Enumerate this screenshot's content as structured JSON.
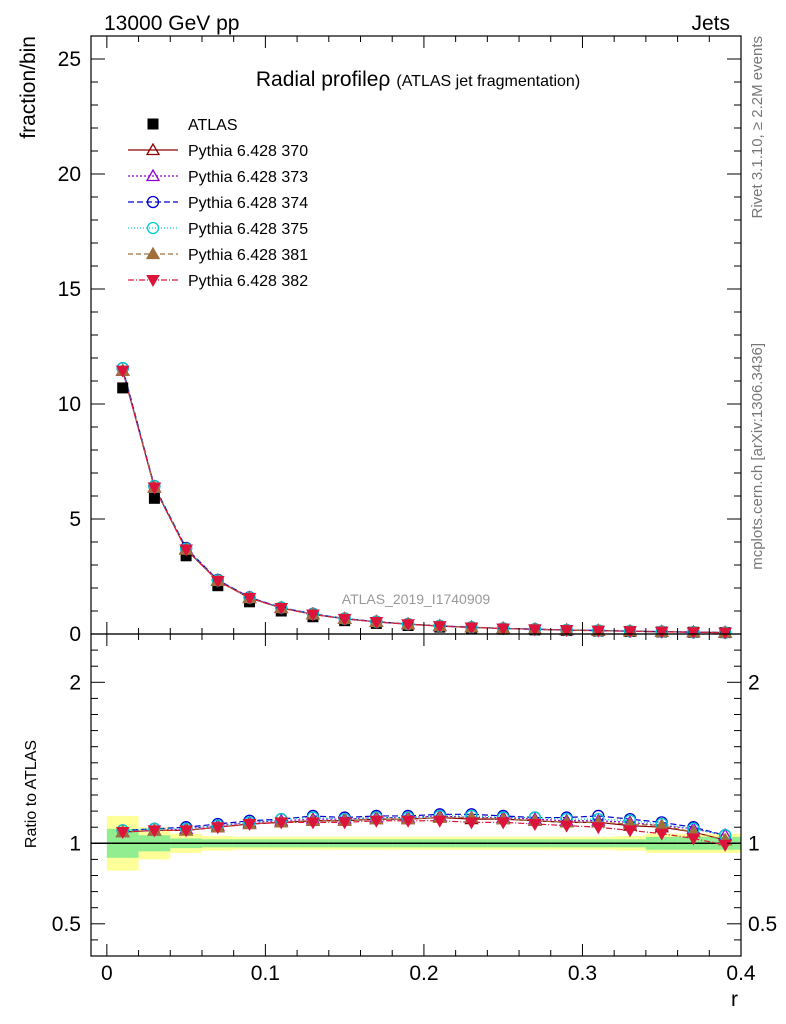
{
  "header": {
    "left": "13000 GeV pp",
    "right": "Jets"
  },
  "side_labels": {
    "rivet": "Rivet 3.1.10, ≥ 2.2M events",
    "mcplots": "mcplots.cern.ch [arXiv:1306.3436]"
  },
  "watermark": "ATLAS_2019_I1740909",
  "chart_data": {
    "type": "line",
    "title": "Radial profileρ",
    "subtitle": "(ATLAS jet fragmentation)",
    "xlabel": "r",
    "ylabel": "fraction/bin",
    "ratio_ylabel": "Ratio to ATLAS",
    "xlim": [
      -0.01,
      0.4
    ],
    "ylim": [
      0,
      26
    ],
    "ratio_ylim": [
      0.3,
      2.3
    ],
    "x_ticks": [
      "0",
      "0.1",
      "0.2",
      "0.3",
      "0.4"
    ],
    "y_ticks": [
      "0",
      "5",
      "10",
      "15",
      "20",
      "25"
    ],
    "ratio_y_ticks": [
      "0.5",
      "1",
      "2"
    ],
    "x": [
      0.01,
      0.03,
      0.05,
      0.07,
      0.09,
      0.11,
      0.13,
      0.15,
      0.17,
      0.19,
      0.21,
      0.23,
      0.25,
      0.27,
      0.29,
      0.31,
      0.33,
      0.35,
      0.37,
      0.39
    ],
    "data": {
      "name": "ATLAS",
      "values": [
        10.7,
        5.9,
        3.4,
        2.1,
        1.4,
        1.0,
        0.75,
        0.58,
        0.46,
        0.37,
        0.3,
        0.25,
        0.21,
        0.18,
        0.15,
        0.13,
        0.11,
        0.09,
        0.075,
        0.06
      ]
    },
    "bands": {
      "green": [
        0.09,
        0.05,
        0.03,
        0.025,
        0.025,
        0.025,
        0.025,
        0.025,
        0.025,
        0.025,
        0.025,
        0.025,
        0.025,
        0.025,
        0.025,
        0.025,
        0.025,
        0.04,
        0.04,
        0.04
      ],
      "yellow": [
        0.17,
        0.1,
        0.06,
        0.045,
        0.04,
        0.04,
        0.04,
        0.04,
        0.04,
        0.04,
        0.04,
        0.04,
        0.04,
        0.04,
        0.04,
        0.04,
        0.045,
        0.06,
        0.06,
        0.06
      ]
    },
    "series": [
      {
        "name": "Pythia 6.428 370",
        "color": "#8b0000",
        "dash": "",
        "marker": "triangle-open",
        "ratio": [
          1.07,
          1.08,
          1.08,
          1.1,
          1.12,
          1.13,
          1.14,
          1.14,
          1.15,
          1.15,
          1.16,
          1.15,
          1.15,
          1.14,
          1.13,
          1.13,
          1.11,
          1.1,
          1.07,
          1.02
        ]
      },
      {
        "name": "Pythia 6.428 373",
        "color": "#9400d3",
        "dash": "2,2",
        "marker": "triangle-open",
        "ratio": [
          1.07,
          1.08,
          1.09,
          1.11,
          1.13,
          1.14,
          1.15,
          1.15,
          1.16,
          1.16,
          1.17,
          1.16,
          1.16,
          1.15,
          1.14,
          1.14,
          1.13,
          1.11,
          1.09,
          1.05
        ]
      },
      {
        "name": "Pythia 6.428 374",
        "color": "#0000cd",
        "dash": "6,3",
        "marker": "circle-open",
        "ratio": [
          1.08,
          1.09,
          1.1,
          1.12,
          1.14,
          1.15,
          1.17,
          1.16,
          1.17,
          1.17,
          1.18,
          1.18,
          1.17,
          1.16,
          1.16,
          1.17,
          1.15,
          1.13,
          1.1,
          1.05
        ]
      },
      {
        "name": "Pythia 6.428 375",
        "color": "#00cdcd",
        "dash": "1,2",
        "marker": "circle-open",
        "ratio": [
          1.08,
          1.09,
          1.09,
          1.11,
          1.13,
          1.15,
          1.16,
          1.15,
          1.16,
          1.16,
          1.17,
          1.17,
          1.16,
          1.16,
          1.15,
          1.15,
          1.14,
          1.12,
          1.09,
          1.05
        ]
      },
      {
        "name": "Pythia 6.428 381",
        "color": "#a0703c",
        "dash": "5,3",
        "marker": "triangle-filled",
        "ratio": [
          1.07,
          1.08,
          1.08,
          1.1,
          1.12,
          1.13,
          1.14,
          1.14,
          1.15,
          1.15,
          1.16,
          1.16,
          1.15,
          1.14,
          1.13,
          1.13,
          1.12,
          1.11,
          1.07,
          1.02
        ]
      },
      {
        "name": "Pythia 6.428 382",
        "color": "#dc143c",
        "dash": "6,2,1,2",
        "marker": "triangle-down-filled",
        "ratio": [
          1.07,
          1.08,
          1.08,
          1.1,
          1.12,
          1.13,
          1.13,
          1.13,
          1.14,
          1.14,
          1.14,
          1.13,
          1.13,
          1.12,
          1.11,
          1.1,
          1.08,
          1.06,
          1.03,
          0.99
        ]
      }
    ],
    "grid": false,
    "legend_position": "top-left"
  }
}
